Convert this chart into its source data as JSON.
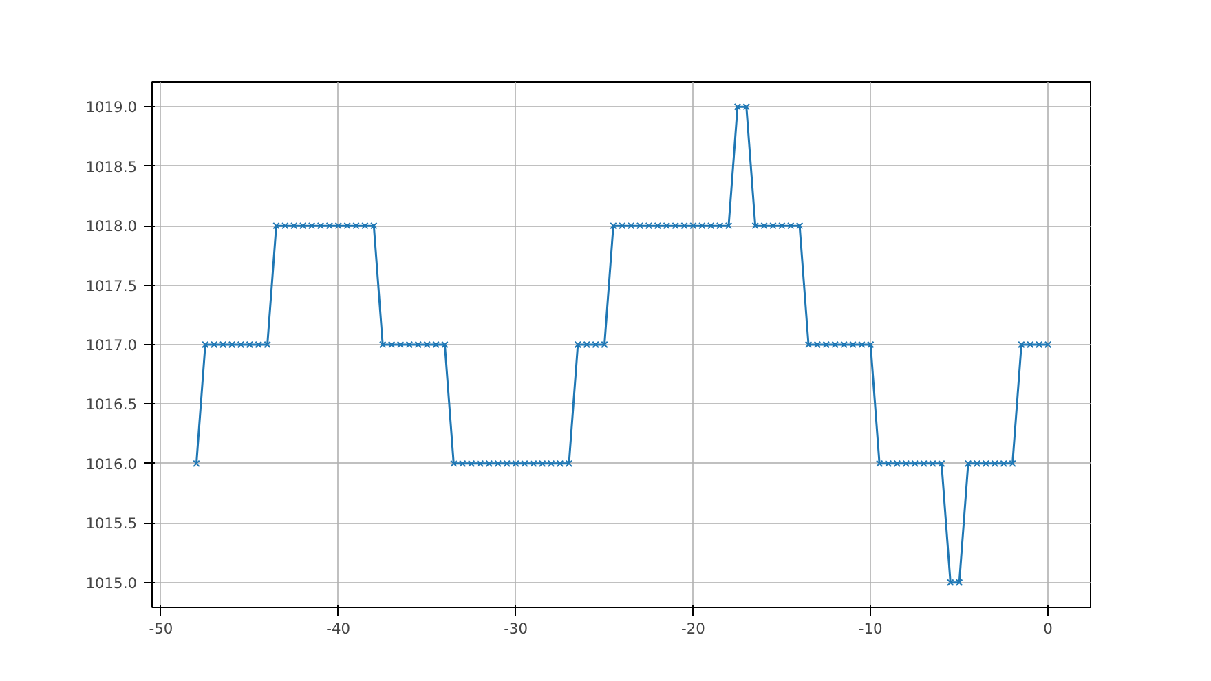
{
  "chart_data": {
    "type": "line",
    "marker": "cross",
    "line_style": "solid",
    "grid": true,
    "x": [
      -48,
      -47.5,
      -47,
      -46.5,
      -46,
      -45.5,
      -45,
      -44.5,
      -44,
      -43.5,
      -43,
      -42.5,
      -42,
      -41.5,
      -41,
      -40.5,
      -40,
      -39.5,
      -39,
      -38.5,
      -38,
      -37.5,
      -37,
      -36.5,
      -36,
      -35.5,
      -35,
      -34.5,
      -34,
      -33.5,
      -33,
      -32.5,
      -32,
      -31.5,
      -31,
      -30.5,
      -30,
      -29.5,
      -29,
      -28.5,
      -28,
      -27.5,
      -27,
      -26.5,
      -26,
      -25.5,
      -25,
      -24.5,
      -24,
      -23.5,
      -23,
      -22.5,
      -22,
      -21.5,
      -21,
      -20.5,
      -20,
      -19.5,
      -19,
      -18.5,
      -18,
      -17.5,
      -17,
      -16.5,
      -16,
      -15.5,
      -15,
      -14.5,
      -14,
      -13.5,
      -13,
      -12.5,
      -12,
      -11.5,
      -11,
      -10.5,
      -10,
      -9.5,
      -9,
      -8.5,
      -8,
      -7.5,
      -7,
      -6.5,
      -6,
      -5.5,
      -5,
      -4.5,
      -4,
      -3.5,
      -3,
      -2.5,
      -2,
      -1.5,
      -1,
      -0.5,
      0
    ],
    "series": [
      {
        "color": "#1f77b4",
        "values": [
          1016,
          1017,
          1017,
          1017,
          1017,
          1017,
          1017,
          1017,
          1017,
          1018,
          1018,
          1018,
          1018,
          1018,
          1018,
          1018,
          1018,
          1018,
          1018,
          1018,
          1018,
          1017,
          1017,
          1017,
          1017,
          1017,
          1017,
          1017,
          1017,
          1016,
          1016,
          1016,
          1016,
          1016,
          1016,
          1016,
          1016,
          1016,
          1016,
          1016,
          1016,
          1016,
          1016,
          1017,
          1017,
          1017,
          1017,
          1018,
          1018,
          1018,
          1018,
          1018,
          1018,
          1018,
          1018,
          1018,
          1018,
          1018,
          1018,
          1018,
          1018,
          1019,
          1019,
          1018,
          1018,
          1018,
          1018,
          1018,
          1018,
          1017,
          1017,
          1017,
          1017,
          1017,
          1017,
          1017,
          1017,
          1016,
          1016,
          1016,
          1016,
          1016,
          1016,
          1016,
          1016,
          1015,
          1015,
          1016,
          1016,
          1016,
          1016,
          1016,
          1016,
          1017,
          1017,
          1017,
          1017
        ]
      }
    ],
    "xlim": [
      -50.5,
      2.4
    ],
    "ylim": [
      1014.79,
      1019.21
    ],
    "xticks": [
      -50,
      -40,
      -30,
      -20,
      -10,
      0
    ],
    "yticks": [
      {
        "value": 1015,
        "label": "1015.0"
      },
      {
        "value": 1015.5,
        "label": "1015.5"
      },
      {
        "value": 1016,
        "label": "1016.0"
      },
      {
        "value": 1016.5,
        "label": "1016.5"
      },
      {
        "value": 1017,
        "label": "1017.0"
      },
      {
        "value": 1017.5,
        "label": "1017.5"
      },
      {
        "value": 1018,
        "label": "1018.0"
      },
      {
        "value": 1018.5,
        "label": "1018.5"
      },
      {
        "value": 1019,
        "label": "1019.0"
      }
    ]
  }
}
